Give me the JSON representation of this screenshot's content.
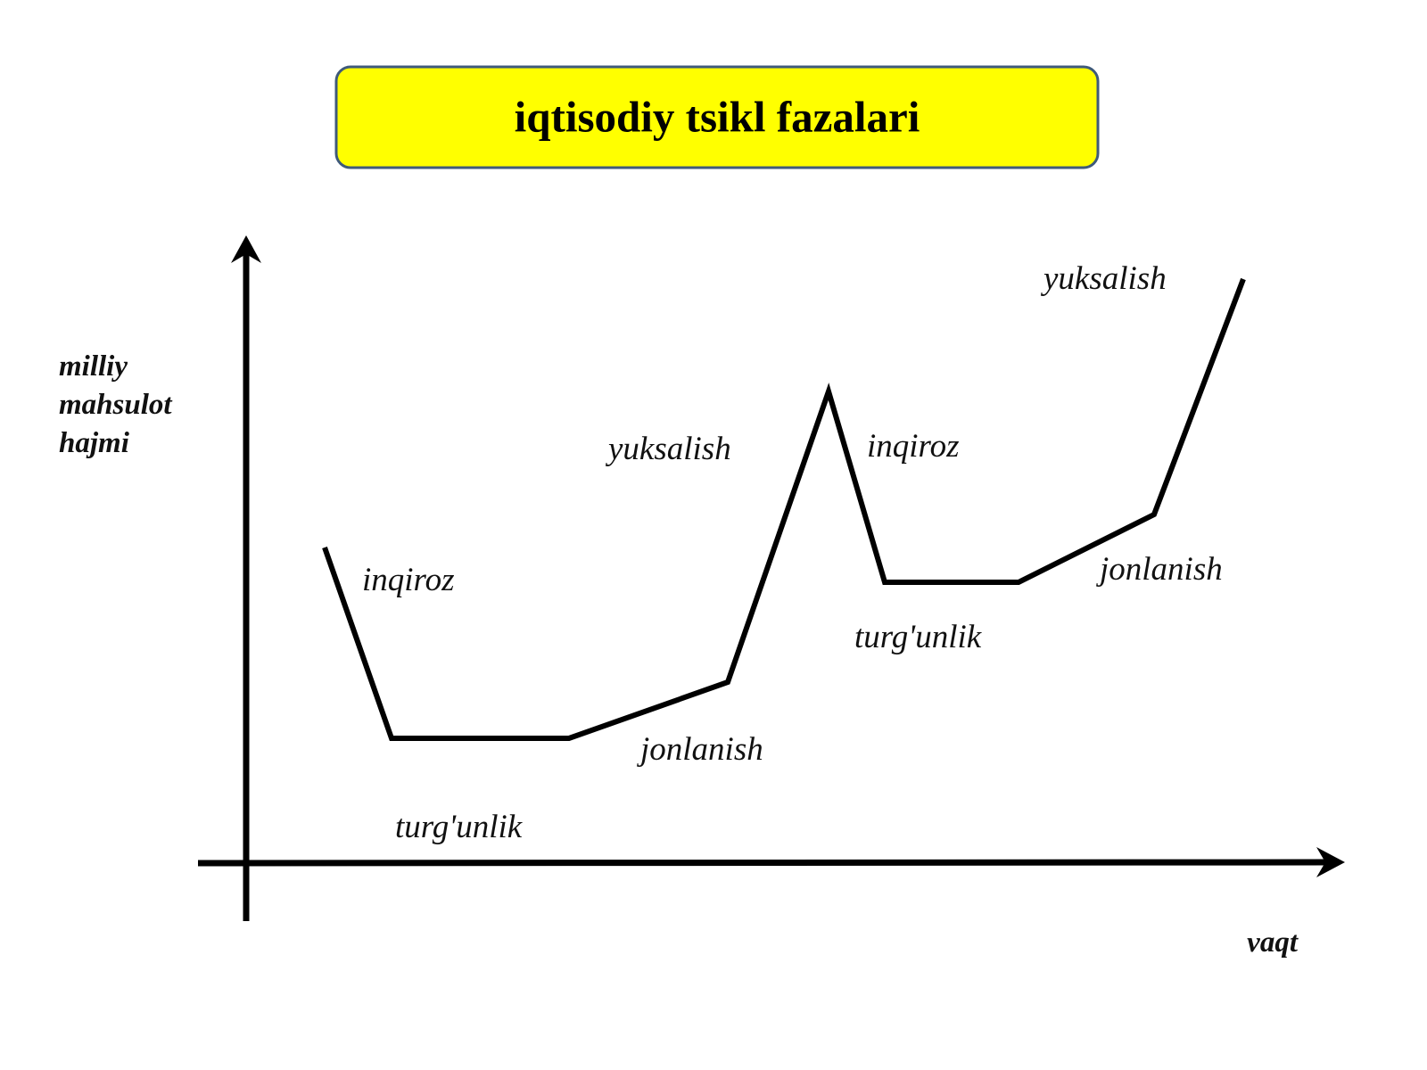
{
  "header": {
    "title": "iqtisodiy tsikl fazalari"
  },
  "axes": {
    "y_label": [
      "milliy",
      "mahsulot",
      "hajmi"
    ],
    "x_label": "vaqt"
  },
  "phases": [
    {
      "label": "inqiroz"
    },
    {
      "label": "turg'unlik"
    },
    {
      "label": "jonlanish"
    },
    {
      "label": "yuksalish"
    },
    {
      "label": "inqiroz"
    },
    {
      "label": "turg'unlik"
    },
    {
      "label": "jonlanish"
    },
    {
      "label": "yuksalish"
    }
  ]
}
